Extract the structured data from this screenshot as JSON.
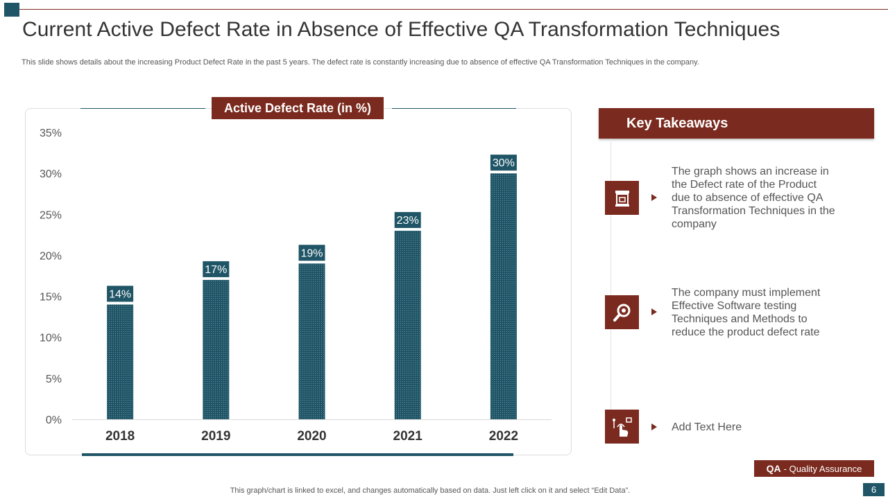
{
  "title": "Current Active Defect Rate in Absence of Effective QA Transformation Techniques",
  "subtitle": "This slide shows details about the increasing Product Defect Rate in the past 5 years. The defect rate is constantly increasing due to absence of effective QA Transformation Techniques in the company.",
  "colors": {
    "accent": "#7a2a1e",
    "bar": "#1f5566",
    "text": "#333333"
  },
  "chart_data": {
    "type": "bar",
    "title": "Active Defect Rate (in %)",
    "categories": [
      "2018",
      "2019",
      "2020",
      "2021",
      "2022"
    ],
    "values": [
      14,
      17,
      19,
      23,
      30
    ],
    "data_labels": [
      "14%",
      "17%",
      "19%",
      "23%",
      "30%"
    ],
    "yticks": [
      "0%",
      "5%",
      "10%",
      "15%",
      "20%",
      "25%",
      "30%",
      "35%"
    ],
    "ylim": [
      0,
      35
    ],
    "xlabel": "",
    "ylabel": "",
    "grid": false,
    "legend": "none"
  },
  "takeaways": {
    "header": "Key Takeaways",
    "items": [
      {
        "icon": "document-box-icon",
        "text": "The graph shows an increase in the Defect rate of the Product due to absence of effective QA Transformation Techniques in the company"
      },
      {
        "icon": "magnifier-icon",
        "text": "The company must implement Effective Software testing Techniques and Methods to reduce the product defect rate"
      },
      {
        "icon": "touch-hand-icon",
        "text": "Add Text Here"
      }
    ]
  },
  "badge": {
    "abbr": "QA",
    "label": "- Quality Assurance"
  },
  "footer_note": "This graph/chart is linked to excel,  and changes automatically based on data. Just left click on it and select “Edit Data”.",
  "page_number": "6"
}
